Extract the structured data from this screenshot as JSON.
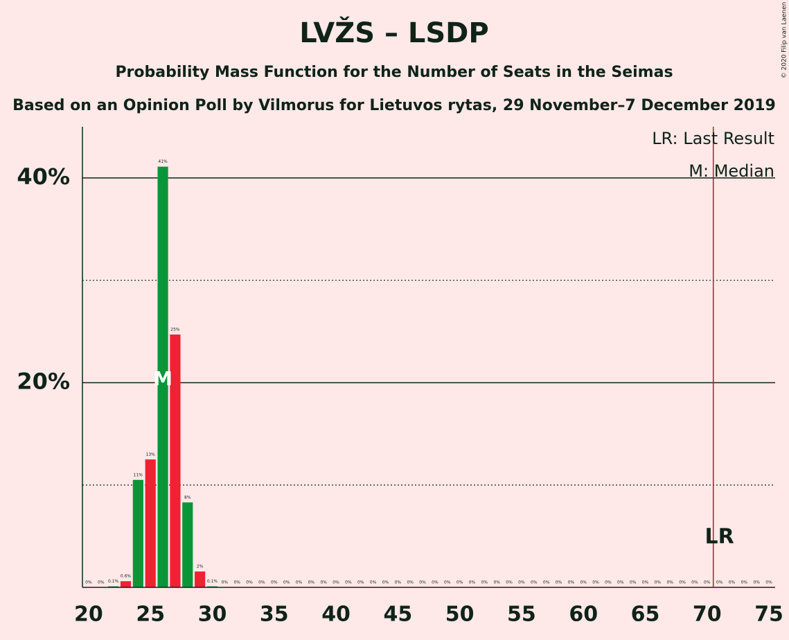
{
  "chart_data": {
    "type": "bar",
    "title": "LVŽS – LSDP",
    "subtitle": "Probability Mass Function for the Number of Seats in the Seimas",
    "caption": "Based on an Opinion Poll by Vilmorus for Lietuvos rytas, 29 November–7 December 2019",
    "copyright": "© 2020 Filip van Laenen",
    "x": [
      20,
      21,
      22,
      23,
      24,
      25,
      26,
      27,
      28,
      29,
      30,
      31,
      32,
      33,
      34,
      35,
      36,
      37,
      38,
      39,
      40,
      41,
      42,
      43,
      44,
      45,
      46,
      47,
      48,
      49,
      50,
      51,
      52,
      53,
      54,
      55,
      56,
      57,
      58,
      59,
      60,
      61,
      62,
      63,
      64,
      65,
      66,
      67,
      68,
      69,
      70,
      71,
      72,
      73,
      74,
      75
    ],
    "values": [
      0,
      0,
      0.1,
      0.6,
      10.5,
      12.5,
      41.1,
      24.7,
      8.3,
      1.55,
      0.1,
      0,
      0,
      0,
      0,
      0,
      0,
      0,
      0,
      0,
      0,
      0,
      0,
      0,
      0,
      0,
      0,
      0,
      0,
      0,
      0,
      0,
      0,
      0,
      0,
      0,
      0,
      0,
      0,
      0,
      0,
      0,
      0,
      0,
      0,
      0,
      0,
      0,
      0,
      0,
      0,
      0,
      0,
      0,
      0,
      0
    ],
    "value_labels": [
      "0%",
      "0%",
      "0.1%",
      "0.6%",
      "11%",
      "13%",
      "41%",
      "25%",
      "8%",
      "2%",
      "0.1%",
      "0%",
      "0%",
      "0%",
      "0%",
      "0%",
      "0%",
      "0%",
      "0%",
      "0%",
      "0%",
      "0%",
      "0%",
      "0%",
      "0%",
      "0%",
      "0%",
      "0%",
      "0%",
      "0%",
      "0%",
      "0%",
      "0%",
      "0%",
      "0%",
      "0%",
      "0%",
      "0%",
      "0%",
      "0%",
      "0%",
      "0%",
      "0%",
      "0%",
      "0%",
      "0%",
      "0%",
      "0%",
      "0%",
      "0%",
      "0%",
      "0%",
      "0%",
      "0%",
      "0%",
      "0%"
    ],
    "colors": [
      "#0a9638",
      "#ee2233"
    ],
    "xlim": [
      19.5,
      75.5
    ],
    "xticks": [
      20,
      25,
      30,
      35,
      40,
      45,
      50,
      55,
      60,
      65,
      70,
      75
    ],
    "ylim": [
      0,
      45
    ],
    "yticks": [
      {
        "value": 20,
        "label": "20%"
      },
      {
        "value": 40,
        "label": "40%"
      }
    ],
    "minor_yticks": [
      10,
      30
    ],
    "grid": true,
    "last_result": {
      "value": 71,
      "label": "LR",
      "legend": "LR: Last Result",
      "color": "#c0171e"
    },
    "median": {
      "value": 26,
      "label": "M",
      "legend": "M: Median"
    }
  }
}
